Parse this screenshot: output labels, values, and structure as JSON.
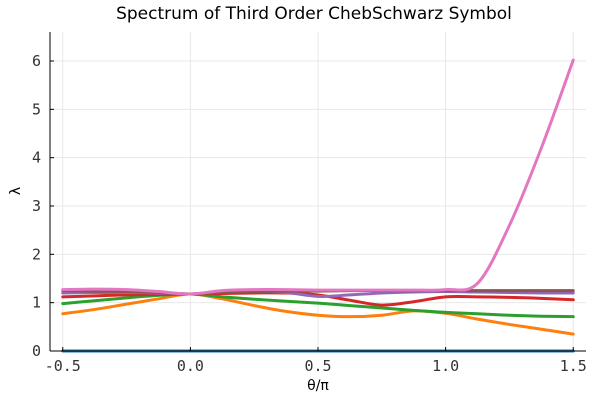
{
  "chart_data": {
    "type": "line",
    "title": "Spectrum of Third Order ChebSchwarz Symbol",
    "xlabel": "θ/π",
    "ylabel": "λ",
    "xlim": [
      -0.55,
      1.55
    ],
    "ylim": [
      0,
      6.6
    ],
    "xticks": [
      -0.5,
      0.0,
      0.5,
      1.0,
      1.5
    ],
    "xtick_labels": [
      "-0.5",
      "0.0",
      "0.5",
      "1.0",
      "1.5"
    ],
    "yticks": [
      0,
      1,
      2,
      3,
      4,
      5,
      6
    ],
    "ytick_labels": [
      "0",
      "1",
      "2",
      "3",
      "4",
      "5",
      "6"
    ],
    "grid": true,
    "legend": "none",
    "x": [
      -0.5,
      -0.375,
      -0.25,
      -0.125,
      0.0,
      0.125,
      0.25,
      0.375,
      0.5,
      0.625,
      0.75,
      0.875,
      1.0,
      1.125,
      1.25,
      1.375,
      1.5
    ],
    "series": [
      {
        "color": "#1f77b4",
        "values": [
          0.0,
          0.0,
          0.0,
          0.0,
          0.0,
          0.0,
          0.0,
          0.0,
          0.0,
          0.0,
          0.0,
          0.0,
          0.0,
          0.0,
          0.0,
          0.0,
          0.0
        ]
      },
      {
        "color": "#ff7f0e",
        "values": [
          0.77,
          0.86,
          0.97,
          1.08,
          1.18,
          1.08,
          0.94,
          0.82,
          0.74,
          0.71,
          0.74,
          0.83,
          0.78,
          0.66,
          0.55,
          0.45,
          0.35
        ]
      },
      {
        "color": "#2ca02c",
        "values": [
          0.98,
          1.04,
          1.1,
          1.15,
          1.18,
          1.12,
          1.07,
          1.03,
          0.99,
          0.94,
          0.89,
          0.84,
          0.8,
          0.77,
          0.74,
          0.72,
          0.71
        ]
      },
      {
        "color": "#d62728",
        "values": [
          1.12,
          1.14,
          1.16,
          1.17,
          1.18,
          1.19,
          1.2,
          1.2,
          1.16,
          1.05,
          0.95,
          1.02,
          1.12,
          1.12,
          1.11,
          1.09,
          1.06
        ]
      },
      {
        "color": "#9467bd",
        "values": [
          1.2,
          1.21,
          1.21,
          1.2,
          1.18,
          1.22,
          1.24,
          1.21,
          1.13,
          1.16,
          1.2,
          1.22,
          1.23,
          1.22,
          1.21,
          1.2,
          1.2
        ]
      },
      {
        "color": "#8c564b",
        "values": [
          1.25,
          1.24,
          1.23,
          1.21,
          1.18,
          1.21,
          1.23,
          1.24,
          1.24,
          1.25,
          1.25,
          1.25,
          1.25,
          1.25,
          1.25,
          1.25,
          1.25
        ]
      },
      {
        "color": "#e377c2",
        "values": [
          1.27,
          1.28,
          1.27,
          1.23,
          1.18,
          1.25,
          1.27,
          1.27,
          1.26,
          1.26,
          1.26,
          1.26,
          1.27,
          1.4,
          2.6,
          4.2,
          6.02
        ]
      }
    ]
  }
}
